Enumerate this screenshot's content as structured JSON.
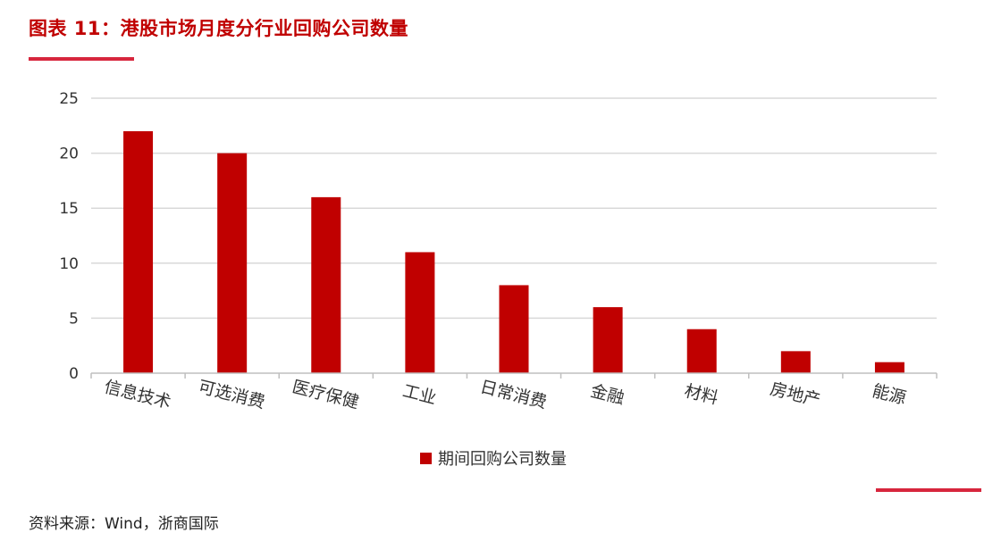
{
  "header": {
    "title": "图表 11：港股市场月度分行业回购公司数量"
  },
  "footer": {
    "source": "资料来源：Wind，浙商国际"
  },
  "colors": {
    "accent": "#d7263d",
    "bar": "#c00000",
    "grid": "#d9d9d9"
  },
  "chart_data": {
    "type": "bar",
    "title": "",
    "xlabel": "",
    "ylabel": "",
    "categories": [
      "信息技术",
      "可选消费",
      "医疗保健",
      "工业",
      "日常消费",
      "金融",
      "材料",
      "房地产",
      "能源"
    ],
    "series": [
      {
        "name": "期间回购公司数量",
        "values": [
          22,
          20,
          16,
          11,
          8,
          6,
          4,
          2,
          1
        ]
      }
    ],
    "ylim": [
      0,
      25
    ],
    "yticks": [
      0,
      5,
      10,
      15,
      20,
      25
    ],
    "grid": true,
    "legend_position": "bottom-center"
  }
}
